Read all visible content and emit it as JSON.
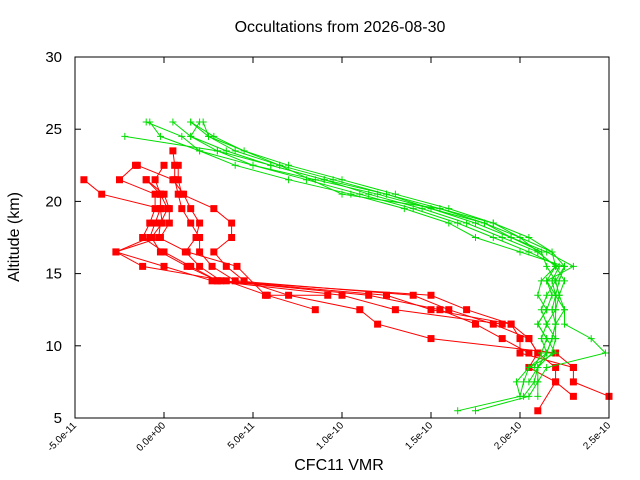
{
  "chart_data": {
    "type": "line",
    "title": "Occultations from 2026-08-30",
    "xlabel": "CFC11 VMR",
    "ylabel": "Altitude (km)",
    "xlim": [
      -5e-11,
      2.5e-10
    ],
    "ylim": [
      5,
      30
    ],
    "xticks": [
      -5e-11,
      0,
      5e-11,
      1e-10,
      1.5e-10,
      2e-10,
      2.5e-10
    ],
    "xtick_labels": [
      "-5.0e-11",
      "0.0e+00",
      "5.0e-11",
      "1.0e-10",
      "1.5e-10",
      "2.0e-10",
      "2.5e-10"
    ],
    "yticks": [
      5,
      10,
      15,
      20,
      25,
      30
    ],
    "ytick_labels": [
      "5",
      "10",
      "15",
      "20",
      "25",
      "30"
    ],
    "grid": false,
    "legend": "none",
    "series": [
      {
        "color": "#ff0000",
        "marker": "square",
        "points": [
          [
            2.5e-10,
            6.5
          ],
          [
            2.3e-10,
            7.5
          ],
          [
            2.3e-10,
            8.5
          ],
          [
            2.2e-10,
            9.5
          ],
          [
            1.5e-10,
            10.5
          ],
          [
            1.2e-10,
            11.5
          ],
          [
            1.1e-10,
            12.5
          ],
          [
            7e-11,
            13.5
          ],
          [
            4.5e-11,
            14.5
          ],
          [
            3.5e-11,
            15.5
          ],
          [
            2.8e-11,
            16.5
          ],
          [
            3.8e-11,
            17.5
          ],
          [
            3.8e-11,
            18.5
          ],
          [
            2.8e-11,
            19.5
          ],
          [
            1e-11,
            20.5
          ],
          [
            8e-12,
            21.5
          ],
          [
            8e-12,
            22.5
          ]
        ]
      },
      {
        "color": "#ff0000",
        "marker": "square",
        "points": [
          [
            2.3e-10,
            6.5
          ],
          [
            2.2e-10,
            7.5
          ],
          [
            2.2e-10,
            8.5
          ],
          [
            2.1e-10,
            9.5
          ],
          [
            2.05e-10,
            10.5
          ],
          [
            1.85e-10,
            11.5
          ],
          [
            1.6e-10,
            12.5
          ],
          [
            1.4e-10,
            13.5
          ],
          [
            4e-11,
            14.5
          ],
          [
            2.7e-11,
            15.5
          ],
          [
            2e-11,
            16.5
          ],
          [
            2e-11,
            17.5
          ],
          [
            1.5e-11,
            18.5
          ],
          [
            1e-11,
            19.5
          ],
          [
            8e-12,
            20.5
          ],
          [
            6e-12,
            21.5
          ],
          [
            6e-12,
            22.5
          ],
          [
            5e-12,
            23.5
          ]
        ]
      },
      {
        "color": "#ff0000",
        "marker": "square",
        "points": [
          [
            2.1e-10,
            5.5
          ],
          [
            2.2e-10,
            7.5
          ],
          [
            2.05e-10,
            8.5
          ],
          [
            2.1e-10,
            9.5
          ],
          [
            2.05e-10,
            10.5
          ],
          [
            1.95e-10,
            11.5
          ],
          [
            1.5e-10,
            12.5
          ],
          [
            1.25e-10,
            13.5
          ],
          [
            3.2e-11,
            14.5
          ],
          [
            2e-11,
            15.5
          ],
          [
            1.2e-11,
            16.5
          ],
          [
            1.8e-11,
            17.5
          ],
          [
            2e-11,
            18.5
          ],
          [
            1.5e-11,
            19.5
          ],
          [
            1.1e-11,
            20.5
          ],
          [
            5e-12,
            21.5
          ],
          [
            -1.5e-11,
            22.5
          ]
        ]
      },
      {
        "color": "#ff0000",
        "marker": "square",
        "points": [
          [
            2.3e-10,
            8.5
          ],
          [
            2e-10,
            9.5
          ],
          [
            2e-10,
            10.5
          ],
          [
            1.95e-10,
            11.5
          ],
          [
            1.7e-10,
            12.5
          ],
          [
            1.5e-10,
            13.5
          ],
          [
            3e-11,
            14.5
          ],
          [
            1.3e-11,
            15.5
          ],
          [
            -2e-12,
            16.5
          ],
          [
            -7e-12,
            17.5
          ],
          [
            -1e-12,
            18.5
          ],
          [
            -2e-12,
            19.5
          ],
          [
            -2e-12,
            20.5
          ],
          [
            -5e-12,
            21.5
          ],
          [
            0,
            22.5
          ]
        ]
      },
      {
        "color": "#ff0000",
        "marker": "square",
        "points": [
          [
            2.05e-10,
            9.5
          ],
          [
            1.9e-10,
            10.5
          ],
          [
            1.75e-10,
            11.5
          ],
          [
            1.55e-10,
            12.5
          ],
          [
            1.15e-10,
            13.5
          ],
          [
            3e-11,
            14.5
          ],
          [
            1.5e-11,
            15.5
          ],
          [
            0,
            16.5
          ],
          [
            -1.2e-11,
            17.5
          ],
          [
            -8e-12,
            18.5
          ],
          [
            -5e-12,
            19.5
          ],
          [
            -5e-12,
            20.5
          ],
          [
            -2.5e-11,
            21.5
          ],
          [
            -1.6e-11,
            22.5
          ]
        ]
      },
      {
        "color": "#ff0000",
        "marker": "square",
        "points": [
          [
            1.9e-10,
            11.5
          ],
          [
            1.3e-10,
            12.5
          ],
          [
            1e-10,
            13.5
          ],
          [
            2.7e-11,
            14.5
          ],
          [
            0,
            15.5
          ],
          [
            -2.7e-11,
            16.5
          ],
          [
            -2e-12,
            17.5
          ],
          [
            3e-12,
            18.5
          ],
          [
            3e-12,
            19.5
          ],
          [
            0,
            20.5
          ],
          [
            -1e-11,
            21.5
          ]
        ]
      },
      {
        "color": "#ff0000",
        "marker": "square",
        "points": [
          [
            8.5e-11,
            12.5
          ],
          [
            5.8e-11,
            13.5
          ],
          [
            3.5e-11,
            14.5
          ],
          [
            -1.2e-11,
            15.5
          ],
          [
            -2.7e-11,
            16.5
          ],
          [
            -8e-12,
            17.5
          ],
          [
            -5e-12,
            18.5
          ],
          [
            -2e-12,
            19.5
          ],
          [
            -3.5e-11,
            20.5
          ],
          [
            -4.5e-11,
            21.5
          ]
        ]
      },
      {
        "color": "#ff0000",
        "marker": "square",
        "points": [
          [
            9.2e-11,
            13.5
          ],
          [
            5.7e-11,
            13.5
          ],
          [
            4.1e-11,
            15.5
          ],
          [
            1.3e-11,
            16.5
          ],
          [
            -3e-12,
            17.5
          ],
          [
            -2e-12,
            18.5
          ],
          [
            2e-12,
            19.5
          ],
          [
            -2e-12,
            20.5
          ],
          [
            -1e-11,
            21.5
          ]
        ]
      },
      {
        "color": "#00dd00",
        "marker": "plus",
        "points": [
          [
            1.65e-10,
            5.5
          ],
          [
            2e-10,
            6.5
          ],
          [
            2.02e-10,
            7.5
          ],
          [
            2.05e-10,
            8.5
          ],
          [
            2.15e-10,
            9.5
          ],
          [
            2.18e-10,
            10.5
          ],
          [
            2.2e-10,
            11.5
          ],
          [
            2.2e-10,
            12.5
          ],
          [
            2.22e-10,
            13.5
          ],
          [
            2.2e-10,
            14.5
          ],
          [
            2.25e-10,
            15.5
          ],
          [
            2e-10,
            16.5
          ],
          [
            1.75e-10,
            17.5
          ],
          [
            1.6e-10,
            18.5
          ],
          [
            1.35e-10,
            19.5
          ],
          [
            1.05e-10,
            20.5
          ],
          [
            7e-11,
            21.5
          ],
          [
            4e-11,
            22.5
          ],
          [
            2e-11,
            23.5
          ],
          [
            1e-11,
            24.5
          ],
          [
            -1e-11,
            25.5
          ]
        ]
      },
      {
        "color": "#00dd00",
        "marker": "plus",
        "points": [
          [
            1.75e-10,
            5.5
          ],
          [
            2.05e-10,
            6.5
          ],
          [
            2.1e-10,
            7.5
          ],
          [
            2.1e-10,
            8.5
          ],
          [
            2.18e-10,
            9.5
          ],
          [
            2.2e-10,
            10.5
          ],
          [
            2.15e-10,
            11.5
          ],
          [
            2.2e-10,
            12.5
          ],
          [
            2.2e-10,
            13.5
          ],
          [
            2.18e-10,
            14.5
          ],
          [
            2.22e-10,
            15.5
          ],
          [
            2.05e-10,
            16.5
          ],
          [
            1.85e-10,
            17.5
          ],
          [
            1.65e-10,
            18.5
          ],
          [
            1.4e-10,
            19.5
          ],
          [
            1.1e-10,
            20.5
          ],
          [
            8e-11,
            21.5
          ],
          [
            5e-11,
            22.5
          ],
          [
            3e-11,
            23.5
          ],
          [
            1.5e-11,
            24.5
          ],
          [
            5e-12,
            25.5
          ]
        ]
      },
      {
        "color": "#00dd00",
        "marker": "plus",
        "points": [
          [
            2e-10,
            6.5
          ],
          [
            1.98e-10,
            7.5
          ],
          [
            2.05e-10,
            8.5
          ],
          [
            2.2e-10,
            9.5
          ],
          [
            2.15e-10,
            10.5
          ],
          [
            2.1e-10,
            11.5
          ],
          [
            2.15e-10,
            12.5
          ],
          [
            2.18e-10,
            13.5
          ],
          [
            2.15e-10,
            14.5
          ],
          [
            2.2e-10,
            15.5
          ],
          [
            2.1e-10,
            16.5
          ],
          [
            1.9e-10,
            17.5
          ],
          [
            1.7e-10,
            18.5
          ],
          [
            1.45e-10,
            19.5
          ],
          [
            1.15e-10,
            20.5
          ],
          [
            9e-11,
            21.5
          ],
          [
            6e-11,
            22.5
          ],
          [
            3.5e-11,
            23.5
          ],
          [
            1.5e-11,
            24.5
          ],
          [
            2e-11,
            25.5
          ]
        ]
      },
      {
        "color": "#00dd00",
        "marker": "plus",
        "points": [
          [
            2.02e-10,
            6.5
          ],
          [
            2.08e-10,
            7.5
          ],
          [
            2.1e-10,
            8.5
          ],
          [
            2.15e-10,
            9.5
          ],
          [
            2.12e-10,
            10.5
          ],
          [
            2.15e-10,
            11.5
          ],
          [
            2.12e-10,
            12.5
          ],
          [
            2.15e-10,
            13.5
          ],
          [
            2.2e-10,
            14.5
          ],
          [
            2.15e-10,
            15.5
          ],
          [
            2.12e-10,
            16.5
          ],
          [
            1.95e-10,
            17.5
          ],
          [
            1.8e-10,
            18.5
          ],
          [
            1.5e-10,
            19.5
          ],
          [
            1.25e-10,
            20.5
          ],
          [
            9.5e-11,
            21.5
          ],
          [
            6.5e-11,
            22.5
          ],
          [
            4e-11,
            23.5
          ],
          [
            2.5e-11,
            24.5
          ],
          [
            2.2e-11,
            25.5
          ]
        ]
      },
      {
        "color": "#00dd00",
        "marker": "plus",
        "points": [
          [
            2.1e-10,
            6.5
          ],
          [
            2.1e-10,
            7.5
          ],
          [
            2.15e-10,
            8.5
          ],
          [
            2.48e-10,
            9.5
          ],
          [
            2.4e-10,
            10.5
          ],
          [
            2.25e-10,
            11.5
          ],
          [
            2.25e-10,
            12.5
          ],
          [
            2.22e-10,
            13.5
          ],
          [
            2.25e-10,
            14.5
          ],
          [
            2.2e-10,
            15.5
          ],
          [
            2.18e-10,
            16.5
          ],
          [
            2e-10,
            17.5
          ],
          [
            1.85e-10,
            18.5
          ],
          [
            1.6e-10,
            19.5
          ],
          [
            1.3e-10,
            20.5
          ],
          [
            1e-10,
            21.5
          ],
          [
            7e-11,
            22.5
          ],
          [
            4.5e-11,
            23.5
          ],
          [
            2.8e-11,
            24.5
          ],
          [
            1.5e-11,
            25.5
          ]
        ]
      },
      {
        "color": "#00dd00",
        "marker": "plus",
        "points": [
          [
            2.05e-10,
            7.5
          ],
          [
            2.1e-10,
            8.5
          ],
          [
            2.15e-10,
            9.5
          ],
          [
            2.18e-10,
            10.5
          ],
          [
            2.2e-10,
            11.5
          ],
          [
            2.18e-10,
            12.5
          ],
          [
            2.2e-10,
            13.5
          ],
          [
            2.15e-10,
            14.5
          ],
          [
            2.3e-10,
            15.5
          ],
          [
            2.15e-10,
            16.5
          ],
          [
            1.95e-10,
            17.5
          ],
          [
            1.75e-10,
            18.5
          ],
          [
            1.5e-10,
            19.5
          ],
          [
            1.2e-10,
            20.5
          ],
          [
            8.5e-11,
            21.5
          ],
          [
            5e-11,
            22.5
          ],
          [
            2e-11,
            23.5
          ],
          [
            -2e-12,
            24.5
          ],
          [
            -8e-12,
            25.5
          ]
        ]
      },
      {
        "color": "#00dd00",
        "marker": "plus",
        "points": [
          [
            2.08e-10,
            8.5
          ],
          [
            2.12e-10,
            9.5
          ],
          [
            2.15e-10,
            10.5
          ],
          [
            2.1e-10,
            11.5
          ],
          [
            2.15e-10,
            12.5
          ],
          [
            2.1e-10,
            13.5
          ],
          [
            2.12e-10,
            14.5
          ],
          [
            2.2e-10,
            15.5
          ],
          [
            2.1e-10,
            16.5
          ],
          [
            2e-10,
            17.5
          ],
          [
            1.8e-10,
            18.5
          ],
          [
            1.55e-10,
            19.5
          ],
          [
            1.25e-10,
            20.5
          ],
          [
            9e-11,
            21.5
          ],
          [
            6e-11,
            22.5
          ],
          [
            3e-11,
            23.5
          ],
          [
            -2.2e-11,
            24.5
          ]
        ]
      },
      {
        "color": "#00dd00",
        "marker": "plus",
        "points": [
          [
            2.2e-10,
            10.5
          ],
          [
            2.2e-10,
            11.5
          ],
          [
            2.25e-10,
            12.5
          ],
          [
            2.2e-10,
            13.5
          ],
          [
            2.22e-10,
            14.5
          ],
          [
            2.25e-10,
            15.5
          ],
          [
            2.18e-10,
            16.5
          ],
          [
            2.05e-10,
            17.5
          ],
          [
            1.85e-10,
            18.5
          ],
          [
            1.55e-10,
            19.5
          ],
          [
            1e-10,
            20.5
          ],
          [
            6.5e-11,
            22.5
          ],
          [
            2.5e-11,
            24.5
          ],
          [
            1.5e-11,
            25.5
          ]
        ]
      }
    ]
  }
}
